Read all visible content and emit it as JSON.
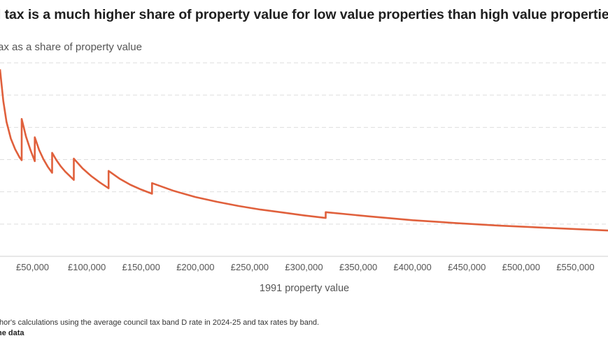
{
  "header": {
    "title": "l tax is a much higher share of property value for low value properties than high value properties",
    "subtitle": "ax as a share of property value"
  },
  "footer": {
    "source": "thor's calculations using the average council tax band D rate in 2024-25 and tax rates by band.",
    "get_data": "he data"
  },
  "chart_data": {
    "type": "line",
    "title": "l tax is a much higher share of property value for low value properties than high value properties",
    "ylabel": "ax as a share of property value",
    "xlabel": "1991 property value",
    "x_tick_labels": [
      "£50,000",
      "£100,000",
      "£150,000",
      "£200,000",
      "£250,000",
      "£300,000",
      "£350,000",
      "£400,000",
      "£450,000",
      "£500,000",
      "£550,000"
    ],
    "x_ticks": [
      50000,
      100000,
      150000,
      200000,
      250000,
      300000,
      350000,
      400000,
      450000,
      500000,
      550000
    ],
    "xlim": [
      20000,
      580000
    ],
    "ylim": [
      0,
      6
    ],
    "grid": true,
    "series_color": "#e0603c",
    "x": [
      20000,
      23000,
      26000,
      30000,
      34000,
      38000,
      40000,
      40000,
      44000,
      48000,
      52000,
      52000,
      56000,
      60000,
      64000,
      68000,
      68000,
      72000,
      76000,
      80000,
      84000,
      88000,
      88000,
      96000,
      104000,
      112000,
      120000,
      120000,
      130000,
      140000,
      150000,
      160000,
      160000,
      180000,
      200000,
      220000,
      240000,
      260000,
      280000,
      300000,
      320000,
      320000,
      360000,
      400000,
      440000,
      480000,
      520000,
      560000,
      580000
    ],
    "values": [
      5.8,
      4.82,
      4.17,
      3.65,
      3.32,
      3.07,
      2.98,
      4.26,
      3.71,
      3.3,
      2.95,
      3.69,
      3.3,
      3.01,
      2.78,
      2.59,
      3.21,
      2.98,
      2.79,
      2.63,
      2.5,
      2.37,
      3.03,
      2.73,
      2.49,
      2.29,
      2.11,
      2.65,
      2.41,
      2.22,
      2.07,
      1.94,
      2.27,
      2.03,
      1.84,
      1.69,
      1.56,
      1.45,
      1.36,
      1.27,
      1.19,
      1.37,
      1.24,
      1.12,
      1.03,
      0.95,
      0.89,
      0.83,
      0.8
    ]
  }
}
